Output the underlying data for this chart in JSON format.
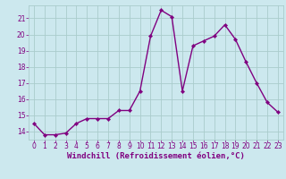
{
  "x": [
    0,
    1,
    2,
    3,
    4,
    5,
    6,
    7,
    8,
    9,
    10,
    11,
    12,
    13,
    14,
    15,
    16,
    17,
    18,
    19,
    20,
    21,
    22,
    23
  ],
  "y": [
    14.5,
    13.8,
    13.8,
    13.9,
    14.5,
    14.8,
    14.8,
    14.8,
    15.3,
    15.3,
    16.5,
    19.9,
    21.5,
    21.1,
    16.5,
    19.3,
    19.6,
    19.9,
    20.6,
    19.7,
    18.3,
    17.0,
    15.8,
    15.2
  ],
  "line_color": "#800080",
  "marker": "D",
  "marker_size": 2.2,
  "line_width": 1.0,
  "bg_color": "#cce8ee",
  "grid_color": "#aacccc",
  "xlabel": "Windchill (Refroidissement éolien,°C)",
  "xlabel_color": "#800080",
  "tick_color": "#800080",
  "ylim": [
    13.5,
    21.8
  ],
  "yticks": [
    14,
    15,
    16,
    17,
    18,
    19,
    20,
    21
  ],
  "xticks": [
    0,
    1,
    2,
    3,
    4,
    5,
    6,
    7,
    8,
    9,
    10,
    11,
    12,
    13,
    14,
    15,
    16,
    17,
    18,
    19,
    20,
    21,
    22,
    23
  ],
  "xlim": [
    -0.5,
    23.5
  ],
  "tick_fontsize": 5.5,
  "xlabel_fontsize": 6.5
}
